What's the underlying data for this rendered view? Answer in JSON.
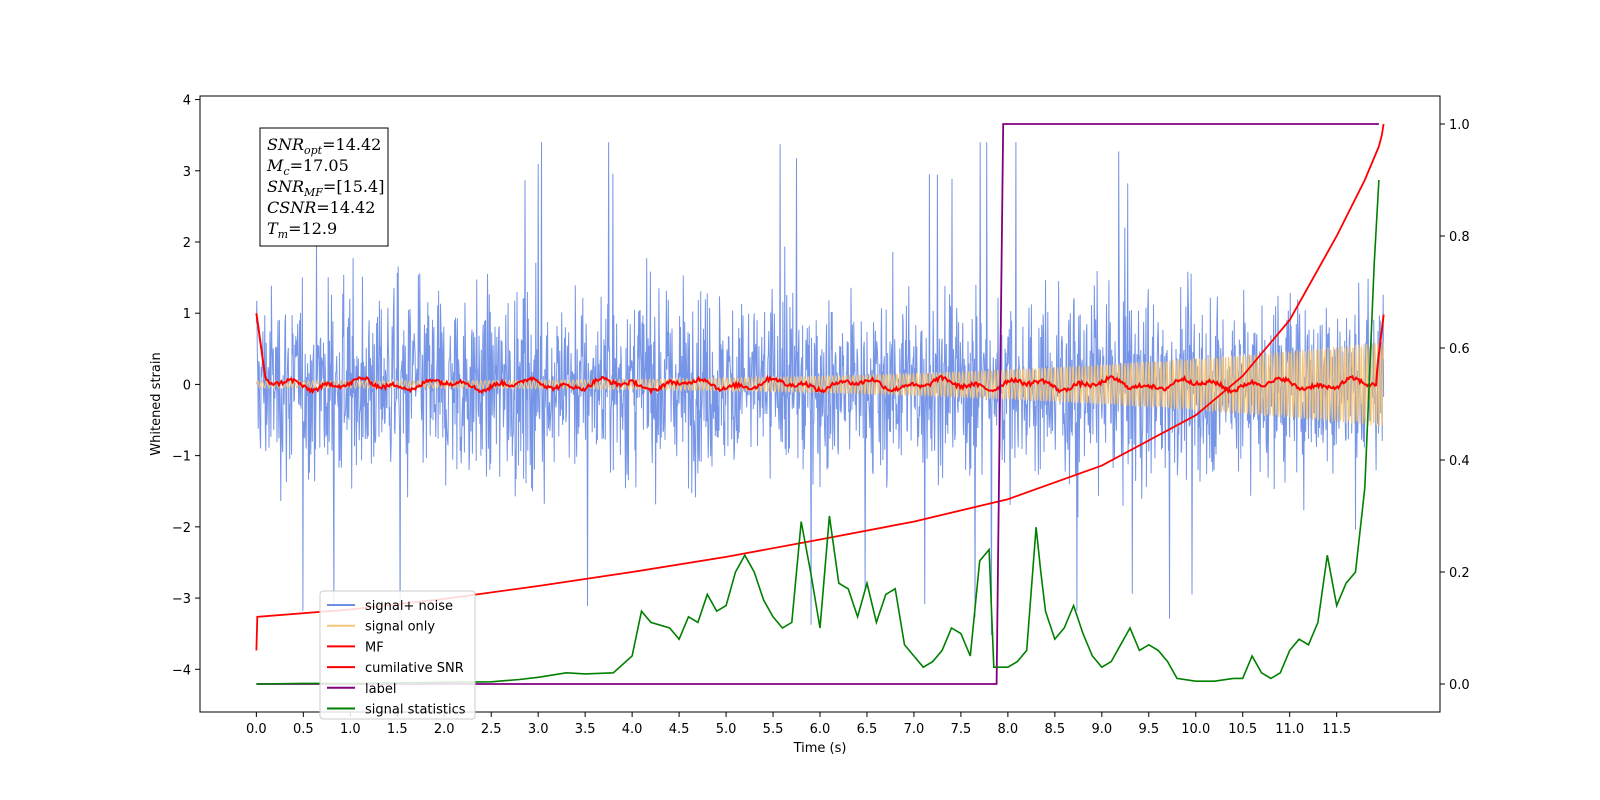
{
  "chart_data": {
    "type": "line",
    "xlabel": "Time (s)",
    "ylabel_left": "Whitened strain",
    "ylabel_right": "",
    "xlim": [
      -0.6,
      12.6
    ],
    "ylim_left": [
      -4.6,
      4.05
    ],
    "ylim_right": [
      -0.05,
      1.05
    ],
    "x_ticks": [
      "0.0",
      "0.5",
      "1.0",
      "1.5",
      "2.0",
      "2.5",
      "3.0",
      "3.5",
      "4.0",
      "4.5",
      "5.0",
      "5.5",
      "6.0",
      "6.5",
      "7.0",
      "7.5",
      "8.0",
      "8.5",
      "9.0",
      "9.5",
      "10.0",
      "10.5",
      "11.0",
      "11.5"
    ],
    "y_ticks_left": [
      "4",
      "3",
      "2",
      "1",
      "0",
      "−1",
      "−2",
      "−3",
      "−4"
    ],
    "y_ticks_right": [
      "1.0",
      "0.8",
      "0.6",
      "0.4",
      "0.2",
      "0.0"
    ],
    "grid": false,
    "legend_position": "lower-left",
    "annotation": {
      "lines": [
        {
          "base": "SNR",
          "sub": "opt",
          "rest": "=14.42"
        },
        {
          "base": "M",
          "sub": "c",
          "rest": "=17.05"
        },
        {
          "base": "SNR",
          "sub": "MF",
          "rest": "=[15.4]"
        },
        {
          "base": "CSNR",
          "sub": "",
          "rest": "=14.42"
        },
        {
          "base": "T",
          "sub": "m",
          "rest": "=12.9"
        }
      ]
    },
    "series": [
      {
        "name": "signal+ noise",
        "color": "#6f8fe6",
        "axis": "left",
        "style": "noise band approx. ±2.5, spikes to ±3.6"
      },
      {
        "name": "signal only",
        "color": "#f5c57a",
        "axis": "left",
        "style": "chirp amplitude growing from 0.05 to 0.6"
      },
      {
        "name": "MF",
        "color": "#ff0000",
        "axis": "left",
        "style": "near 0, starts and ends at 1.0"
      },
      {
        "name": "cumilative SNR",
        "color": "#ff0000",
        "axis": "right",
        "x": [
          0.0,
          0.01,
          1.0,
          2.0,
          3.0,
          4.0,
          5.0,
          6.0,
          7.0,
          8.0,
          9.0,
          10.0,
          10.5,
          11.0,
          11.5,
          11.8,
          11.95,
          11.98,
          12.0
        ],
        "values": [
          0.06,
          0.12,
          0.133,
          0.152,
          0.175,
          0.2,
          0.227,
          0.258,
          0.29,
          0.33,
          0.39,
          0.48,
          0.55,
          0.65,
          0.8,
          0.9,
          0.96,
          0.98,
          1.0
        ]
      },
      {
        "name": "label",
        "color": "#800080",
        "axis": "right",
        "x": [
          0.0,
          7.88,
          7.95,
          11.95
        ],
        "values": [
          0.0,
          0.0,
          1.0,
          1.0
        ]
      },
      {
        "name": "signal statistics",
        "color": "#008000",
        "axis": "right",
        "x": [
          0.0,
          0.5,
          1.0,
          1.5,
          2.0,
          2.5,
          2.8,
          3.0,
          3.3,
          3.5,
          3.8,
          4.0,
          4.1,
          4.2,
          4.4,
          4.5,
          4.6,
          4.7,
          4.8,
          4.9,
          5.0,
          5.1,
          5.2,
          5.3,
          5.4,
          5.5,
          5.6,
          5.7,
          5.8,
          5.9,
          6.0,
          6.1,
          6.2,
          6.3,
          6.4,
          6.5,
          6.6,
          6.7,
          6.8,
          6.9,
          7.0,
          7.1,
          7.2,
          7.3,
          7.4,
          7.5,
          7.6,
          7.7,
          7.8,
          7.85,
          7.9,
          8.0,
          8.1,
          8.2,
          8.3,
          8.35,
          8.4,
          8.5,
          8.6,
          8.7,
          8.8,
          8.9,
          9.0,
          9.1,
          9.2,
          9.3,
          9.4,
          9.5,
          9.6,
          9.7,
          9.8,
          10.0,
          10.2,
          10.4,
          10.5,
          10.6,
          10.7,
          10.8,
          10.9,
          11.0,
          11.1,
          11.2,
          11.3,
          11.4,
          11.5,
          11.6,
          11.7,
          11.8,
          11.9,
          11.95
        ],
        "values": [
          0.0,
          0.001,
          0.001,
          0.002,
          0.003,
          0.004,
          0.008,
          0.012,
          0.02,
          0.018,
          0.02,
          0.05,
          0.13,
          0.11,
          0.1,
          0.08,
          0.12,
          0.11,
          0.16,
          0.13,
          0.14,
          0.2,
          0.23,
          0.2,
          0.15,
          0.12,
          0.1,
          0.11,
          0.29,
          0.2,
          0.1,
          0.3,
          0.18,
          0.17,
          0.12,
          0.18,
          0.11,
          0.16,
          0.17,
          0.07,
          0.05,
          0.03,
          0.04,
          0.06,
          0.1,
          0.09,
          0.05,
          0.22,
          0.24,
          0.03,
          0.03,
          0.03,
          0.04,
          0.06,
          0.28,
          0.2,
          0.13,
          0.08,
          0.1,
          0.14,
          0.09,
          0.05,
          0.03,
          0.04,
          0.07,
          0.1,
          0.06,
          0.07,
          0.06,
          0.04,
          0.01,
          0.005,
          0.005,
          0.01,
          0.01,
          0.05,
          0.02,
          0.01,
          0.02,
          0.06,
          0.08,
          0.07,
          0.11,
          0.23,
          0.14,
          0.18,
          0.2,
          0.35,
          0.75,
          0.9
        ]
      }
    ]
  }
}
